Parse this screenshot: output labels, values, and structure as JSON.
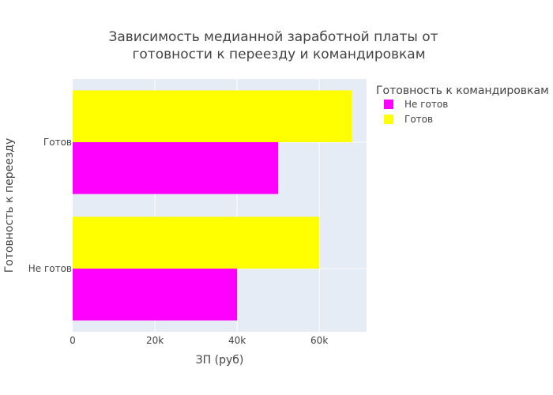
{
  "chart_data": {
    "type": "bar",
    "orientation": "horizontal",
    "title_lines": [
      "Зависимость медианной заработной платы от",
      "готовности к переезду и командировкам"
    ],
    "xlabel": "ЗП (руб)",
    "ylabel": "Готовность к переезду",
    "categories": [
      "Не готов",
      "Готов"
    ],
    "xlim": [
      0,
      71500
    ],
    "x_ticks": [
      {
        "value": 0,
        "label": "0"
      },
      {
        "value": 20000,
        "label": "20k"
      },
      {
        "value": 40000,
        "label": "40k"
      },
      {
        "value": 60000,
        "label": "60k"
      }
    ],
    "legend": {
      "title": "Готовность к командировкам",
      "placement": "right"
    },
    "series": [
      {
        "name": "Не готов",
        "color": "#ff00ff",
        "values": [
          40000,
          50000
        ]
      },
      {
        "name": "Готов",
        "color": "#ffff00",
        "values": [
          60000,
          68000
        ]
      }
    ],
    "grid": true,
    "plot_background": "#e5ecf6"
  }
}
